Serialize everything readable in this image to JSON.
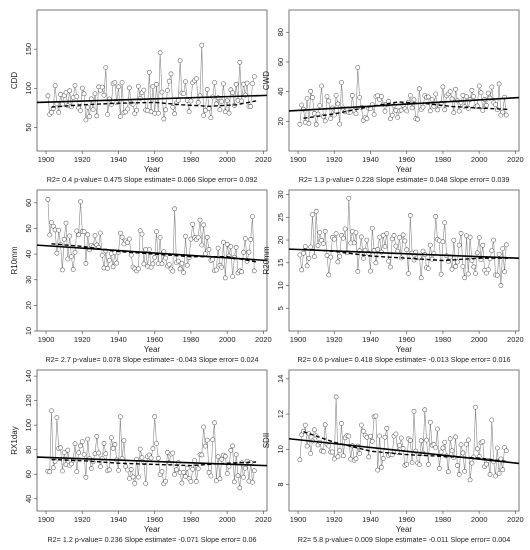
{
  "chart_data": [
    {
      "type": "scatter",
      "ylabel": "CDD",
      "xlabel": "Year",
      "xlim": [
        1895,
        2022
      ],
      "ylim": [
        20,
        200
      ],
      "xticks": [
        1900,
        1920,
        1940,
        1960,
        1980,
        2000,
        2020
      ],
      "yticks": [
        50,
        100,
        150
      ],
      "trend": {
        "start": 82,
        "end": 91
      },
      "smooth": [
        [
          1903,
          76
        ],
        [
          1920,
          79
        ],
        [
          1940,
          81
        ],
        [
          1960,
          82
        ],
        [
          1975,
          79
        ],
        [
          1990,
          77
        ],
        [
          2005,
          79
        ],
        [
          2016,
          84
        ]
      ],
      "base": 82,
      "noise": 42,
      "seed": 11,
      "stats": {
        "r2_label": "R2=",
        "r2": "0.4",
        "p_label": "p-value=",
        "p": "0.475",
        "slope_label": "Slope estimate=",
        "slope": "0.066",
        "error_label": "Slope error=",
        "error": "0.092"
      }
    },
    {
      "type": "scatter",
      "ylabel": "CWD",
      "xlabel": "Year",
      "xlim": [
        1895,
        2022
      ],
      "ylim": [
        0,
        95
      ],
      "xticks": [
        1900,
        1920,
        1940,
        1960,
        1980,
        2000,
        2020
      ],
      "yticks": [
        20,
        40,
        60,
        80
      ],
      "trend": {
        "start": 27,
        "end": 36
      },
      "smooth": [
        [
          1903,
          22
        ],
        [
          1920,
          25
        ],
        [
          1940,
          30
        ],
        [
          1955,
          33
        ],
        [
          1970,
          32
        ],
        [
          1985,
          30
        ],
        [
          2000,
          29
        ],
        [
          2016,
          28
        ]
      ],
      "base": 30,
      "noise": 18,
      "seed": 23,
      "stats": {
        "r2_label": "R2=",
        "r2": "1.3",
        "p_label": "p-value=",
        "p": "0.228",
        "slope_label": "Slope estimate=",
        "slope": "0.048",
        "error_label": "Slope error=",
        "error": "0.039"
      }
    },
    {
      "type": "scatter",
      "ylabel": "R10mm",
      "xlabel": "Year",
      "xlim": [
        1895,
        2022
      ],
      "ylim": [
        10,
        65
      ],
      "xticks": [
        1900,
        1920,
        1940,
        1960,
        1980,
        2000,
        2020
      ],
      "yticks": [
        10,
        20,
        30,
        40,
        50,
        60
      ],
      "trend": {
        "start": 43.5,
        "end": 37.5
      },
      "smooth": [
        [
          1903,
          44
        ],
        [
          1920,
          43
        ],
        [
          1940,
          41
        ],
        [
          1960,
          40
        ],
        [
          1980,
          39
        ],
        [
          2000,
          39
        ],
        [
          2016,
          37
        ]
      ],
      "base": 40,
      "noise": 16,
      "seed": 37,
      "stats": {
        "r2_label": "R2=",
        "r2": "2.7",
        "p_label": "p-value=",
        "p": "0.078",
        "slope_label": "Slope estimate=",
        "slope": "-0.043",
        "error_label": "Slope error=",
        "error": "0.024"
      }
    },
    {
      "type": "scatter",
      "ylabel": "R20mm",
      "xlabel": "Year",
      "xlim": [
        1895,
        2022
      ],
      "ylim": [
        0,
        31
      ],
      "xticks": [
        1900,
        1920,
        1940,
        1960,
        1980,
        2000,
        2020
      ],
      "yticks": [
        5,
        10,
        15,
        20,
        25,
        30
      ],
      "trend": {
        "start": 18,
        "end": 16
      },
      "smooth": [
        [
          1903,
          18
        ],
        [
          1920,
          17.5
        ],
        [
          1940,
          16.5
        ],
        [
          1960,
          16
        ],
        [
          1980,
          15.5
        ],
        [
          2000,
          16
        ],
        [
          2016,
          16
        ]
      ],
      "base": 16,
      "noise": 9,
      "seed": 53,
      "stats": {
        "r2_label": "R2=",
        "r2": "0.6",
        "p_label": "p-value=",
        "p": "0.418",
        "slope_label": "Slope estimate=",
        "slope": "-0.013",
        "error_label": "Slope error=",
        "error": "0.016"
      }
    },
    {
      "type": "scatter",
      "ylabel": "RX1day",
      "xlabel": "Year",
      "xlim": [
        1895,
        2022
      ],
      "ylim": [
        30,
        145
      ],
      "xticks": [
        1900,
        1920,
        1940,
        1960,
        1980,
        2000,
        2020
      ],
      "yticks": [
        40,
        60,
        80,
        100,
        120,
        140
      ],
      "trend": {
        "start": 74,
        "end": 67
      },
      "smooth": [
        [
          1903,
          72
        ],
        [
          1920,
          71
        ],
        [
          1940,
          69
        ],
        [
          1960,
          68
        ],
        [
          1980,
          67
        ],
        [
          2000,
          69
        ],
        [
          2016,
          70
        ]
      ],
      "base": 70,
      "noise": 30,
      "seed": 71,
      "stats": {
        "r2_label": "R2=",
        "r2": "1.2",
        "p_label": "p-value=",
        "p": "0.236",
        "slope_label": "Slope estimate=",
        "slope": "-0.071",
        "error_label": "Slope error=",
        "error": "0.06"
      }
    },
    {
      "type": "scatter",
      "ylabel": "SDII",
      "xlabel": "Year",
      "xlim": [
        1895,
        2022
      ],
      "ylim": [
        6.5,
        14.5
      ],
      "xticks": [
        1900,
        1920,
        1940,
        1960,
        1980,
        2000,
        2020
      ],
      "yticks": [
        8,
        10,
        12,
        14
      ],
      "trend": {
        "start": 10.6,
        "end": 9.2
      },
      "smooth": [
        [
          1903,
          11
        ],
        [
          1920,
          10.4
        ],
        [
          1940,
          9.9
        ],
        [
          1960,
          9.7
        ],
        [
          1980,
          9.6
        ],
        [
          2000,
          9.5
        ],
        [
          2016,
          9.3
        ]
      ],
      "base": 9.9,
      "noise": 2.2,
      "seed": 97,
      "stats": {
        "r2_label": "R2=",
        "r2": "5.8",
        "p_label": "p-value=",
        "p": "0.009",
        "slope_label": "Slope estimate=",
        "slope": "-0.011",
        "error_label": "Slope error=",
        "error": "0.004"
      }
    }
  ]
}
